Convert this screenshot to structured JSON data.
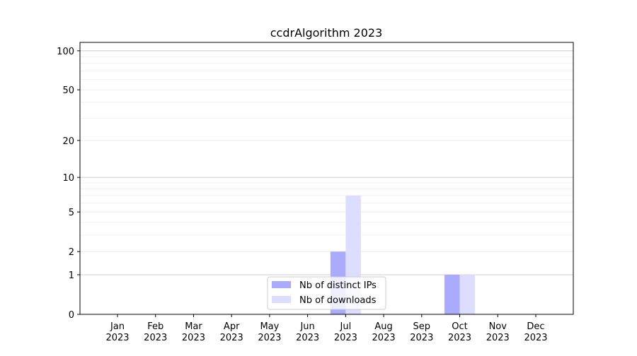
{
  "chart_data": {
    "type": "bar",
    "title": "ccdrAlgorithm 2023",
    "xlabel": "",
    "ylabel": "",
    "categories": [
      "Jan\n2023",
      "Feb\n2023",
      "Mar\n2023",
      "Apr\n2023",
      "May\n2023",
      "Jun\n2023",
      "Jul\n2023",
      "Aug\n2023",
      "Sep\n2023",
      "Oct\n2023",
      "Nov\n2023",
      "Dec\n2023"
    ],
    "series": [
      {
        "name": "Nb of distinct IPs",
        "color": "#aaaaff",
        "values": [
          0,
          0,
          0,
          0,
          0,
          0,
          2,
          0,
          0,
          1,
          0,
          0
        ]
      },
      {
        "name": "Nb of downloads",
        "color": "#ddddff",
        "values": [
          0,
          0,
          0,
          0,
          0,
          0,
          7,
          0,
          0,
          1,
          0,
          0
        ]
      }
    ],
    "yscale": "log(1+y)",
    "yticks": [
      0,
      1,
      2,
      5,
      10,
      20,
      50,
      100
    ],
    "ylim": [
      0,
      116
    ],
    "grid": true,
    "legend": "bottom-center"
  }
}
